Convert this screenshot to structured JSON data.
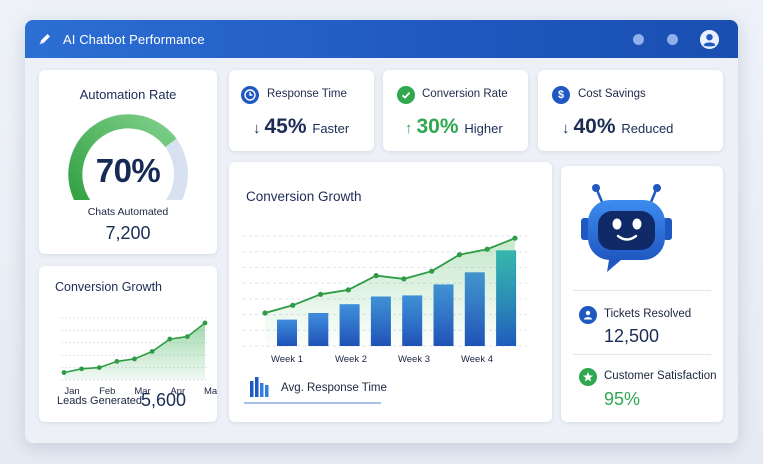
{
  "window": {
    "title": "AI Chatbot Performance"
  },
  "automation": {
    "heading": "Automation Rate",
    "percent": 70,
    "percent_label": "70%",
    "sub_label": "Chats Automated",
    "count": "7,200"
  },
  "stats": {
    "response": {
      "label": "Response Time",
      "arrow": "↓",
      "value": "45%",
      "suffix": "Faster",
      "icon": "clock-icon"
    },
    "conversion": {
      "label": "Conversion Rate",
      "arrow": "↑",
      "value": "30%",
      "suffix": "Higher",
      "icon": "check-icon"
    },
    "cost": {
      "label": "Cost Savings",
      "arrow": "↓",
      "value": "40%",
      "suffix": "Reduced",
      "icon": "dollar-icon"
    }
  },
  "small_chart": {
    "heading": "Conversion Growth",
    "leads_label": "Leads Generated",
    "leads_value": "5,600"
  },
  "big_chart": {
    "heading": "Conversion Growth",
    "legend_label": "Avg. Response Time"
  },
  "bot_panel": {
    "tickets_label": "Tickets Resolved",
    "tickets_value": "12,500",
    "satisfaction_label": "Customer Satisfaction",
    "satisfaction_value": "95%"
  },
  "colors": {
    "header_blue": "#1f58c0",
    "accent_green": "#2fa84f",
    "dark_navy": "#1b2c55"
  },
  "chart_data": [
    {
      "type": "area",
      "categories": [
        "Jan",
        "Feb",
        "Mar",
        "Apr",
        "May"
      ],
      "x": [
        0,
        0.5,
        1,
        1.5,
        2,
        2.5,
        3,
        3.5,
        4
      ],
      "values": [
        12,
        18,
        20,
        30,
        34,
        46,
        66,
        70,
        92
      ],
      "title": "Conversion Growth",
      "ylim": [
        0,
        100
      ],
      "grid": true
    },
    {
      "type": "bar",
      "categories": [
        "Week 1",
        "Week 2",
        "Week 3",
        "Week 4"
      ],
      "bars": [
        24,
        30,
        38,
        45,
        46,
        56,
        67,
        87
      ],
      "line": [
        30,
        37,
        47,
        51,
        64,
        61,
        68,
        83,
        88,
        98
      ],
      "title": "Conversion Growth",
      "ylim": [
        0,
        100
      ],
      "grid": true
    }
  ]
}
